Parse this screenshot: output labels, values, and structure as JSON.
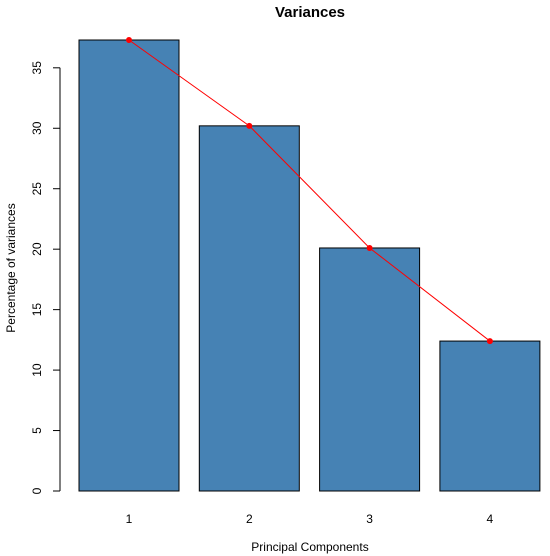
{
  "chart_data": {
    "type": "bar",
    "title": "Variances",
    "xlabel": "Principal Components",
    "ylabel": "Percentage of variances",
    "categories": [
      "1",
      "2",
      "3",
      "4"
    ],
    "values": [
      37.3,
      30.2,
      20.1,
      12.4
    ],
    "ylim": [
      0,
      37.3
    ],
    "yticks": [
      0,
      5,
      10,
      15,
      20,
      25,
      30,
      35
    ],
    "line_overlay": true,
    "colors": {
      "bar_fill": "#4682B4",
      "bar_stroke": "#000000",
      "line": "#FF0000",
      "points": "#FF0000"
    }
  }
}
